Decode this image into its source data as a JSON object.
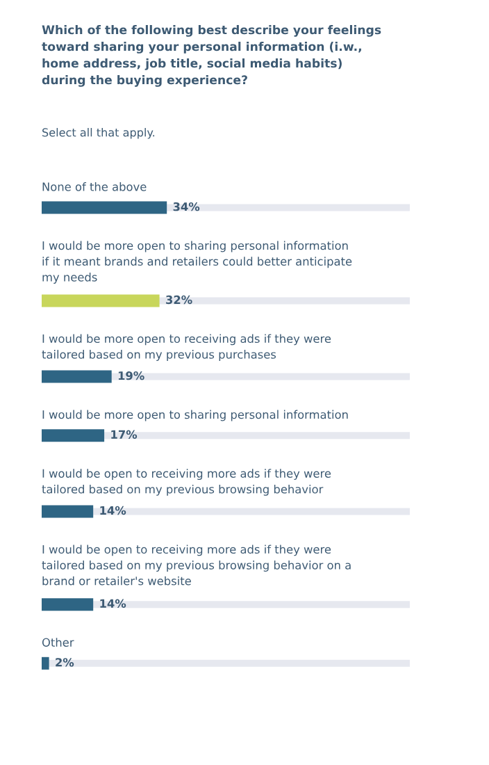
{
  "chart_data": {
    "type": "bar",
    "orientation": "horizontal",
    "title": "Which of the following best describe your feelings\ntoward sharing your personal information (i.w.,\nhome address, job title, social media habits)\nduring the buying experience?",
    "subtitle": "Select all that apply.",
    "categories": [
      "None of the above",
      "I would be more open to sharing personal information\nif it meant brands and retailers could better anticipate\nmy needs",
      "I would be more open to receiving ads if they were\ntailored based on my previous purchases",
      "I would be more open to sharing personal information",
      "I would be open to receiving more ads if they were\ntailored based on my previous browsing behavior",
      "I would be open to receiving more ads if they were\ntailored based on my previous browsing behavior on a\nbrand or retailer's website",
      "Other"
    ],
    "values": [
      34,
      32,
      19,
      17,
      14,
      14,
      2
    ],
    "colors": [
      "#2e6584",
      "#c8d65b",
      "#2e6584",
      "#2e6584",
      "#2e6584",
      "#2e6584",
      "#2e6584"
    ],
    "value_labels": [
      "34%",
      "32%",
      "19%",
      "17%",
      "14%",
      "14%",
      "2%"
    ],
    "xlim": [
      0,
      100
    ],
    "tick_labels": false
  }
}
